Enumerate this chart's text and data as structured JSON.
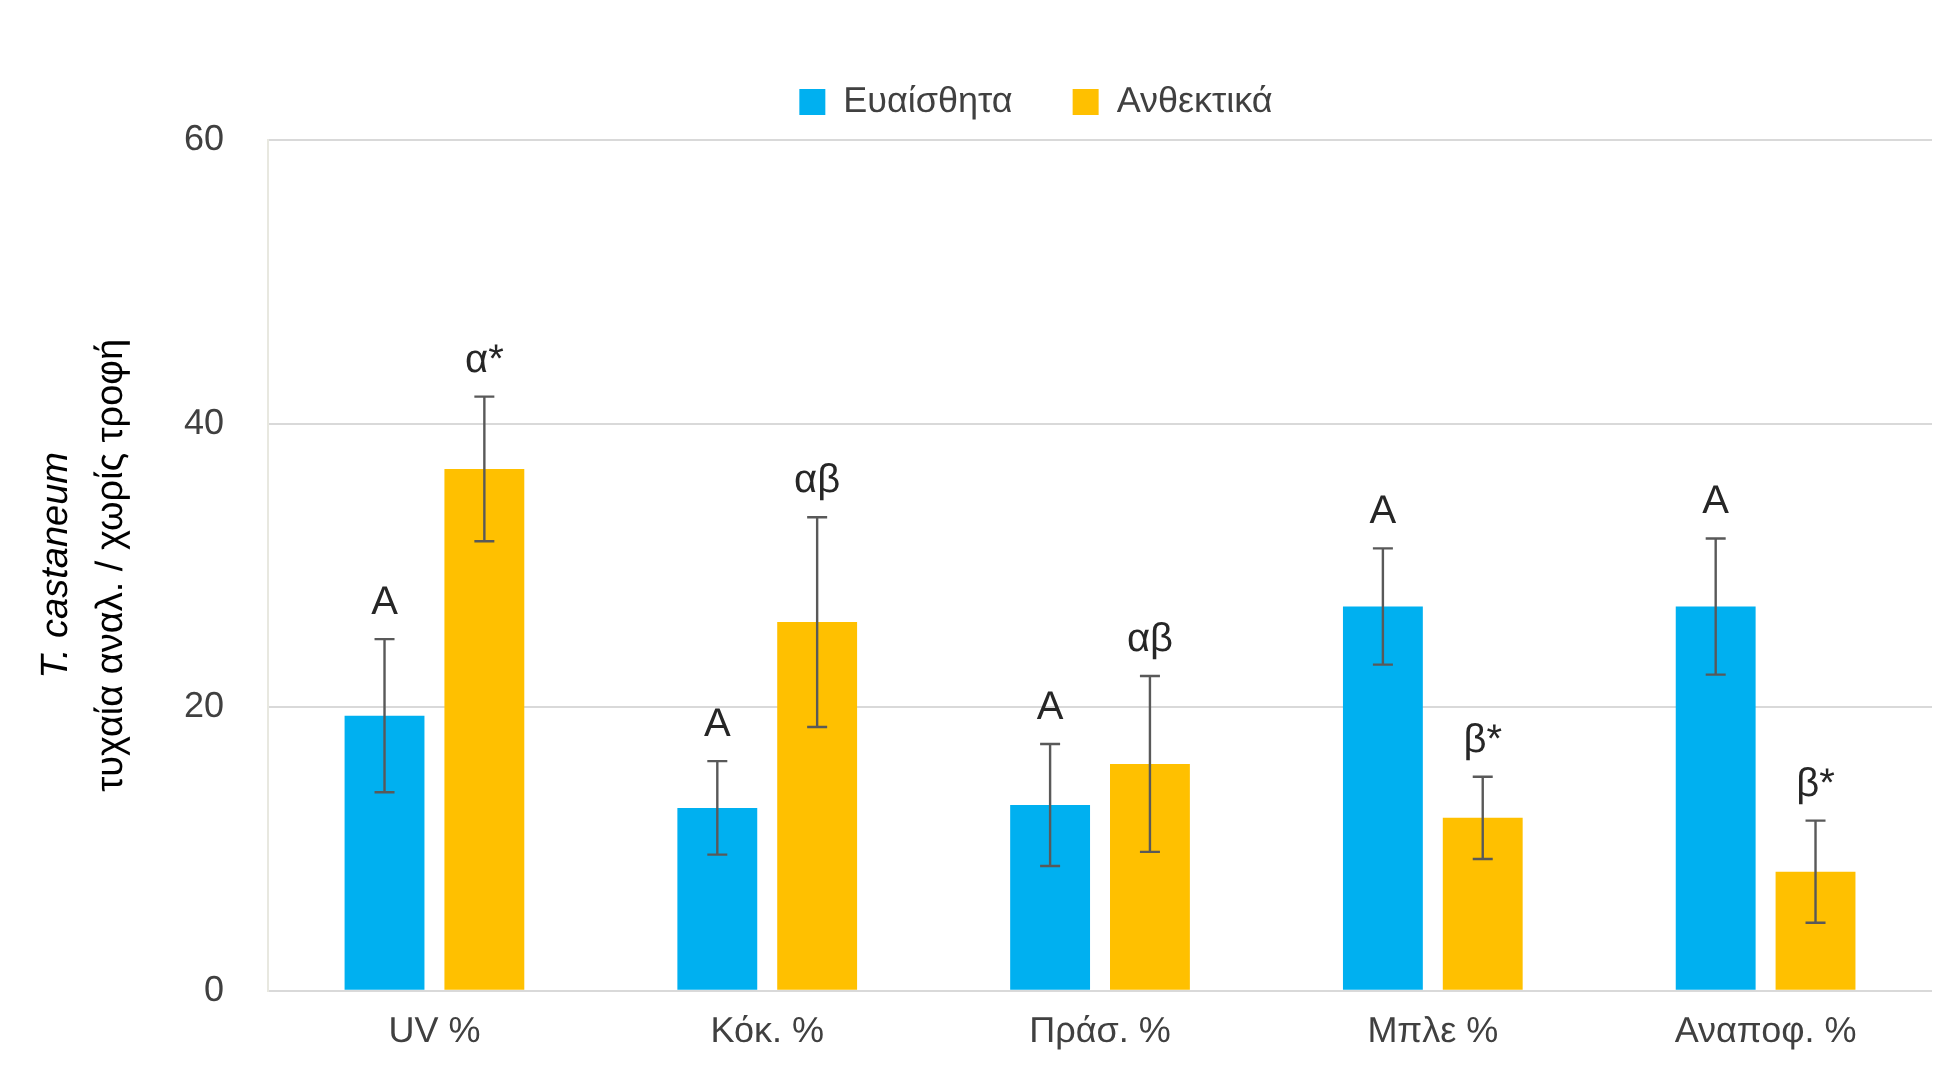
{
  "chart_data": {
    "type": "bar",
    "ylabel": "T. castaneum\nτυχαία αναλ. / χωρίς τροφή",
    "categories": [
      "UV %",
      "Κόκ. %",
      "Πράσ. %",
      "Μπλε %",
      "Αναποφ. %"
    ],
    "series": [
      {
        "name": "Ευαίσθητα",
        "color": "#00b0f0",
        "values": [
          19.4,
          12.9,
          13.1,
          27.1,
          27.1
        ],
        "errors": [
          5.4,
          3.3,
          4.3,
          4.1,
          4.8
        ]
      },
      {
        "name": "Ανθεκτικά",
        "color": "#ffc000",
        "values": [
          36.8,
          26.0,
          16.0,
          12.2,
          8.4
        ],
        "errors": [
          5.1,
          7.4,
          6.2,
          2.9,
          3.6
        ]
      }
    ],
    "ylim": [
      0,
      60
    ],
    "yticks": [
      0,
      20,
      40,
      60
    ],
    "grid": "y",
    "legend": "top",
    "annotations": [
      {
        "text": "A",
        "x": "UV %",
        "y": 19.4
      },
      {
        "text": "α*",
        "x": "UV %",
        "y": 36.8
      },
      {
        "text": "A",
        "x": "Κόκ. %",
        "y": 12.9
      },
      "αβ",
      {
        "text": "A",
        "x": "Πράσ. %",
        "y": 13.1
      },
      {
        "text": "αβ",
        "x": "Πράσ. %",
        "y": 16.0
      },
      {
        "text": "A",
        "x": "Μπλε %",
        "y": 27.1
      },
      {
        "text": "β*",
        "x": "Μπλε %",
        "y": 12.2
      },
      {
        "text": "A",
        "x": "Αναποφ. %",
        "y": 27.1
      },
      {
        "text": "β*",
        "x": "Αναποφ. %",
        "y": 8.4
      }
    ]
  }
}
